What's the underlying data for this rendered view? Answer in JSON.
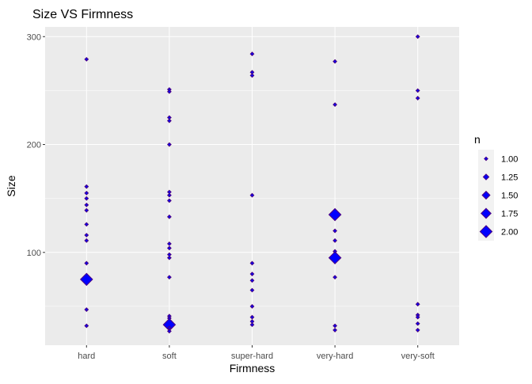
{
  "chart_data": {
    "type": "scatter",
    "title": "Size VS Firmness",
    "xlabel": "Firmness",
    "ylabel": "Size",
    "categories": [
      "hard",
      "soft",
      "super-hard",
      "very-hard",
      "very-soft"
    ],
    "ylim": [
      14,
      309
    ],
    "yticks": [
      100,
      200,
      300
    ],
    "points": [
      {
        "x": "hard",
        "y": 279,
        "n": 1
      },
      {
        "x": "hard",
        "y": 161,
        "n": 1
      },
      {
        "x": "hard",
        "y": 155,
        "n": 1
      },
      {
        "x": "hard",
        "y": 150,
        "n": 1
      },
      {
        "x": "hard",
        "y": 144,
        "n": 1
      },
      {
        "x": "hard",
        "y": 139,
        "n": 1
      },
      {
        "x": "hard",
        "y": 126,
        "n": 1
      },
      {
        "x": "hard",
        "y": 116,
        "n": 1
      },
      {
        "x": "hard",
        "y": 111,
        "n": 1
      },
      {
        "x": "hard",
        "y": 90,
        "n": 1
      },
      {
        "x": "hard",
        "y": 75,
        "n": 2
      },
      {
        "x": "hard",
        "y": 47,
        "n": 1
      },
      {
        "x": "hard",
        "y": 32,
        "n": 1
      },
      {
        "x": "soft",
        "y": 251,
        "n": 1
      },
      {
        "x": "soft",
        "y": 249,
        "n": 1
      },
      {
        "x": "soft",
        "y": 225,
        "n": 1
      },
      {
        "x": "soft",
        "y": 222,
        "n": 1
      },
      {
        "x": "soft",
        "y": 200,
        "n": 1
      },
      {
        "x": "soft",
        "y": 156,
        "n": 1
      },
      {
        "x": "soft",
        "y": 153,
        "n": 1
      },
      {
        "x": "soft",
        "y": 148,
        "n": 1
      },
      {
        "x": "soft",
        "y": 133,
        "n": 1
      },
      {
        "x": "soft",
        "y": 108,
        "n": 1
      },
      {
        "x": "soft",
        "y": 104,
        "n": 1
      },
      {
        "x": "soft",
        "y": 98,
        "n": 1
      },
      {
        "x": "soft",
        "y": 95,
        "n": 1
      },
      {
        "x": "soft",
        "y": 77,
        "n": 1
      },
      {
        "x": "soft",
        "y": 41,
        "n": 1
      },
      {
        "x": "soft",
        "y": 39,
        "n": 1
      },
      {
        "x": "soft",
        "y": 33,
        "n": 2
      },
      {
        "x": "soft",
        "y": 30,
        "n": 1
      },
      {
        "x": "soft",
        "y": 27,
        "n": 1
      },
      {
        "x": "super-hard",
        "y": 284,
        "n": 1
      },
      {
        "x": "super-hard",
        "y": 267,
        "n": 1
      },
      {
        "x": "super-hard",
        "y": 264,
        "n": 1
      },
      {
        "x": "super-hard",
        "y": 153,
        "n": 1
      },
      {
        "x": "super-hard",
        "y": 90,
        "n": 1
      },
      {
        "x": "super-hard",
        "y": 80,
        "n": 1
      },
      {
        "x": "super-hard",
        "y": 74,
        "n": 1
      },
      {
        "x": "super-hard",
        "y": 65,
        "n": 1
      },
      {
        "x": "super-hard",
        "y": 50,
        "n": 1
      },
      {
        "x": "super-hard",
        "y": 40,
        "n": 1
      },
      {
        "x": "super-hard",
        "y": 36,
        "n": 1
      },
      {
        "x": "super-hard",
        "y": 33,
        "n": 1
      },
      {
        "x": "very-hard",
        "y": 277,
        "n": 1
      },
      {
        "x": "very-hard",
        "y": 237,
        "n": 1
      },
      {
        "x": "very-hard",
        "y": 135,
        "n": 2
      },
      {
        "x": "very-hard",
        "y": 120,
        "n": 1
      },
      {
        "x": "very-hard",
        "y": 111,
        "n": 1
      },
      {
        "x": "very-hard",
        "y": 101,
        "n": 1
      },
      {
        "x": "very-hard",
        "y": 95,
        "n": 2
      },
      {
        "x": "very-hard",
        "y": 77,
        "n": 1
      },
      {
        "x": "very-hard",
        "y": 32,
        "n": 1
      },
      {
        "x": "very-hard",
        "y": 28,
        "n": 1
      },
      {
        "x": "very-soft",
        "y": 300,
        "n": 1
      },
      {
        "x": "very-soft",
        "y": 250,
        "n": 1
      },
      {
        "x": "very-soft",
        "y": 243,
        "n": 1
      },
      {
        "x": "very-soft",
        "y": 52,
        "n": 1
      },
      {
        "x": "very-soft",
        "y": 42,
        "n": 1
      },
      {
        "x": "very-soft",
        "y": 40,
        "n": 1
      },
      {
        "x": "very-soft",
        "y": 34,
        "n": 1
      },
      {
        "x": "very-soft",
        "y": 28,
        "n": 1
      }
    ],
    "size_scale": [
      1.0,
      2.0
    ],
    "legend": {
      "title": "n",
      "entries": [
        {
          "label": "1.00",
          "n": 1.0
        },
        {
          "label": "1.25",
          "n": 1.25
        },
        {
          "label": "1.50",
          "n": 1.5
        },
        {
          "label": "1.75",
          "n": 1.75
        },
        {
          "label": "2.00",
          "n": 2.0
        }
      ],
      "position": "right"
    },
    "marker": {
      "fill": "#0000FF",
      "stroke": "#4B0082",
      "shape": "diamond"
    },
    "panel_background": "#EBEBEB",
    "grid": true
  }
}
